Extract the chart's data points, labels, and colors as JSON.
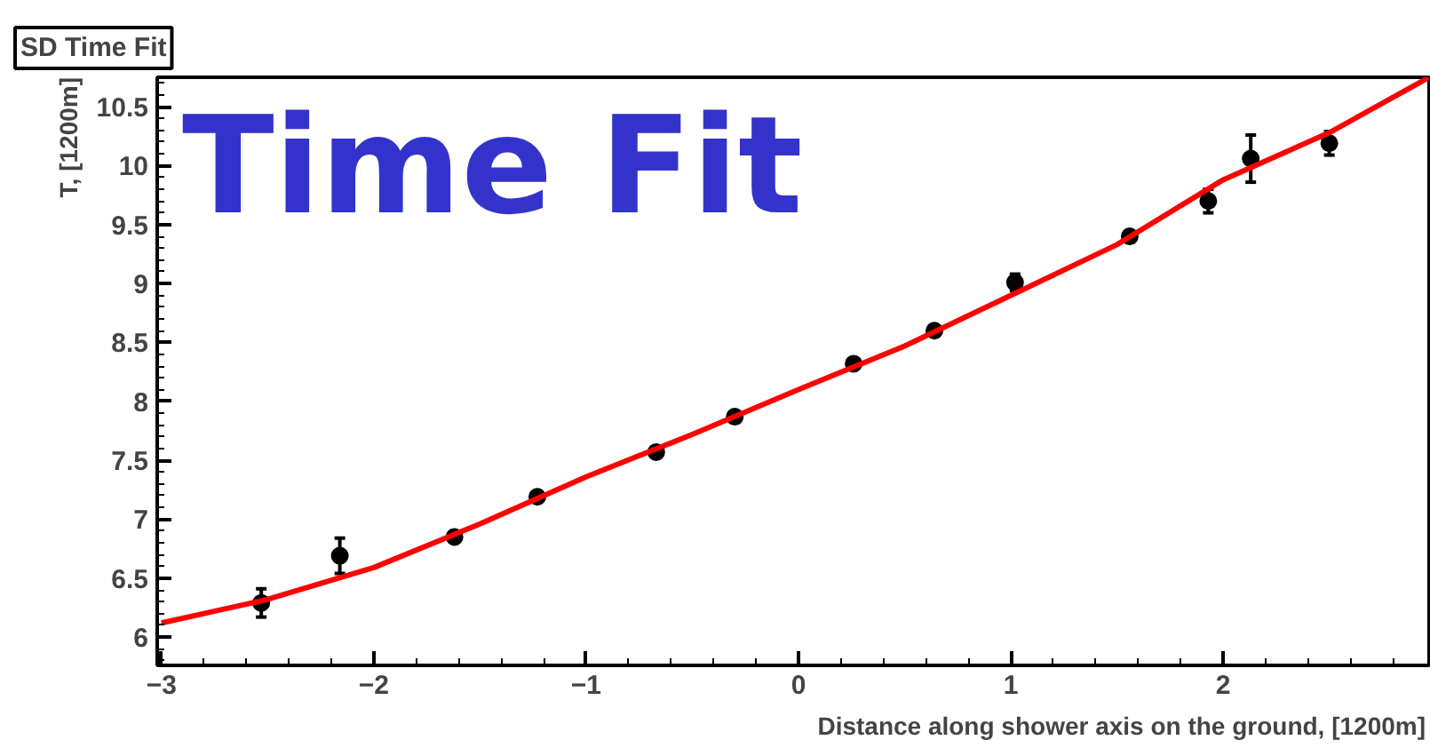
{
  "chart_data": {
    "type": "scatter",
    "title": "SD Time Fit",
    "xlabel": "Distance along shower axis on the ground, [1200m]",
    "ylabel": "T, [1200m]",
    "annotations": [
      "Time Fit"
    ],
    "xlim": [
      -3.02,
      2.97
    ],
    "ylim": [
      5.76,
      10.75
    ],
    "xticks": [
      -3,
      -2,
      -1,
      0,
      1,
      2
    ],
    "yticks": [
      6,
      6.5,
      7,
      7.5,
      8,
      8.5,
      9,
      9.5,
      10,
      10.5
    ],
    "grid": false,
    "series": [
      {
        "color": "#000000",
        "marker": "circle",
        "x": [
          -2.53,
          -2.16,
          -1.62,
          -1.23,
          -0.67,
          -0.3,
          0.26,
          0.64,
          1.02,
          1.56,
          1.93,
          2.13,
          2.5
        ],
        "values": [
          6.29,
          6.69,
          6.85,
          7.19,
          7.57,
          7.87,
          8.32,
          8.6,
          9.01,
          9.4,
          9.7,
          10.06,
          10.19
        ],
        "errors": [
          0.12,
          0.15,
          0.04,
          0.04,
          0.04,
          0.04,
          0.04,
          0.04,
          0.07,
          0.04,
          0.1,
          0.2,
          0.1
        ]
      },
      {
        "type": "line",
        "color": "#ff0000",
        "marker": "none",
        "x": [
          -3.0,
          -2.5,
          -2.0,
          -1.5,
          -1.0,
          -0.5,
          0.0,
          0.5,
          1.0,
          1.5,
          2.0,
          2.5,
          2.97
        ],
        "values": [
          6.12,
          6.32,
          6.59,
          6.96,
          7.36,
          7.72,
          8.1,
          8.47,
          8.9,
          9.33,
          9.88,
          10.28,
          10.75
        ]
      }
    ]
  }
}
